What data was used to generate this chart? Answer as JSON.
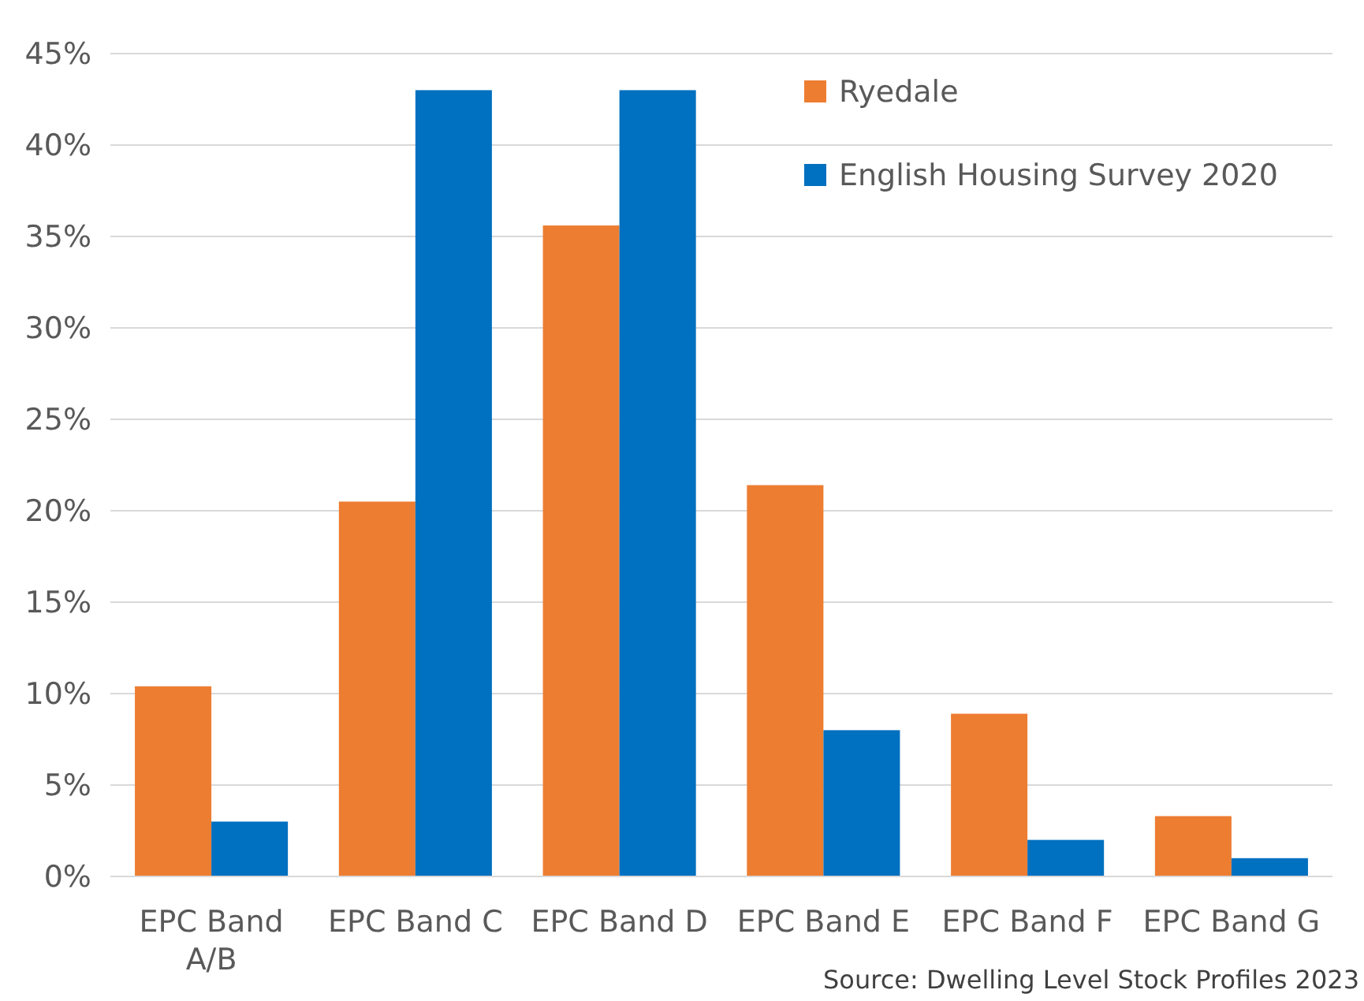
{
  "chart_data": {
    "type": "bar",
    "categories": [
      "EPC Band A/B",
      "EPC Band C",
      "EPC Band D",
      "EPC Band E",
      "EPC Band F",
      "EPC Band G"
    ],
    "series": [
      {
        "name": "Ryedale",
        "color": "#ed7d31",
        "values": [
          10.4,
          20.5,
          35.6,
          21.4,
          8.9,
          3.3
        ]
      },
      {
        "name": "English Housing Survey 2020",
        "color": "#0070c0",
        "values": [
          3.0,
          43.0,
          43.0,
          8.0,
          2.0,
          1.0
        ]
      }
    ],
    "ylim": [
      0,
      45
    ],
    "yticks": [
      {
        "value": 0,
        "label": "0%"
      },
      {
        "value": 5,
        "label": "5%"
      },
      {
        "value": 10,
        "label": "10%"
      },
      {
        "value": 15,
        "label": "15%"
      },
      {
        "value": 20,
        "label": "20%"
      },
      {
        "value": 25,
        "label": "25%"
      },
      {
        "value": 30,
        "label": "30%"
      },
      {
        "value": 35,
        "label": "35%"
      },
      {
        "value": 40,
        "label": "40%"
      },
      {
        "value": 45,
        "label": "45%"
      }
    ],
    "grid": "y",
    "legend": "top right",
    "annotations": [
      "Source: Dwelling Level Stock Profiles 2023"
    ]
  }
}
